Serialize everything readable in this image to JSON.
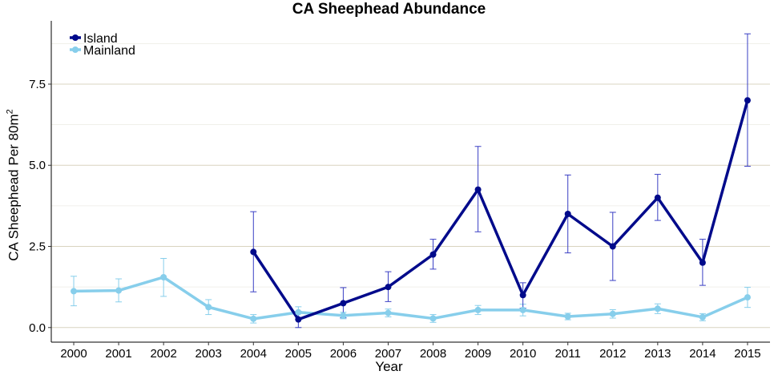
{
  "chart_data": {
    "type": "line",
    "title": "CA Sheephead Abundance",
    "xlabel": "Year",
    "ylabel": "CA Sheephead Per 80m",
    "ylabel_superscript": "2",
    "x": [
      2000,
      2001,
      2002,
      2003,
      2004,
      2005,
      2006,
      2007,
      2008,
      2009,
      2010,
      2011,
      2012,
      2013,
      2014,
      2015
    ],
    "xticks": [
      "2000",
      "2001",
      "2002",
      "2003",
      "2004",
      "2005",
      "2006",
      "2007",
      "2008",
      "2009",
      "2010",
      "2011",
      "2012",
      "2013",
      "2014",
      "2015"
    ],
    "yticks": [
      0.0,
      2.5,
      5.0,
      7.5
    ],
    "ytick_labels": [
      "0.0",
      "2.5",
      "5.0",
      "7.5"
    ],
    "ylim": [
      -0.45,
      9.45
    ],
    "grid": "horizontal",
    "legend_position": "top-left",
    "series": [
      {
        "name": "Island",
        "color": "#000a8b",
        "x": [
          2004,
          2005,
          2006,
          2007,
          2008,
          2009,
          2010,
          2011,
          2012,
          2013,
          2014,
          2015
        ],
        "values": [
          2.33,
          0.25,
          0.75,
          1.25,
          2.25,
          4.25,
          1.0,
          3.5,
          2.5,
          4.0,
          2.0,
          7.0
        ],
        "err_low": [
          1.1,
          0.0,
          0.3,
          0.8,
          1.8,
          2.95,
          0.6,
          2.3,
          1.45,
          3.3,
          1.3,
          4.97
        ],
        "err_high": [
          3.57,
          0.5,
          1.23,
          1.72,
          2.72,
          5.58,
          1.38,
          4.7,
          3.55,
          4.72,
          2.72,
          9.05
        ]
      },
      {
        "name": "Mainland",
        "color": "#87ceeb",
        "x": [
          2000,
          2001,
          2002,
          2003,
          2004,
          2005,
          2006,
          2007,
          2008,
          2009,
          2010,
          2011,
          2012,
          2013,
          2014,
          2015
        ],
        "values": [
          1.12,
          1.14,
          1.55,
          0.63,
          0.27,
          0.47,
          0.37,
          0.45,
          0.28,
          0.54,
          0.54,
          0.34,
          0.42,
          0.58,
          0.32,
          0.93
        ],
        "err_low": [
          0.67,
          0.79,
          0.96,
          0.4,
          0.14,
          0.3,
          0.27,
          0.33,
          0.16,
          0.4,
          0.36,
          0.24,
          0.29,
          0.43,
          0.21,
          0.62
        ],
        "err_high": [
          1.58,
          1.5,
          2.13,
          0.86,
          0.4,
          0.64,
          0.47,
          0.57,
          0.4,
          0.68,
          0.72,
          0.44,
          0.55,
          0.73,
          0.43,
          1.24
        ]
      }
    ]
  }
}
